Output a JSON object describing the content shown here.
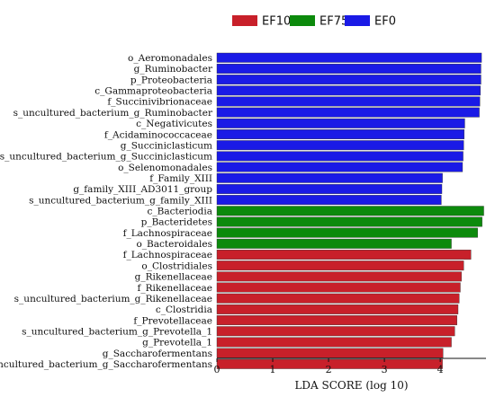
{
  "chart_data": {
    "type": "bar",
    "orientation": "horizontal",
    "xlabel": "LDA SCORE (log 10)",
    "xlim": [
      0,
      4.82
    ],
    "xticks": [
      0,
      1,
      2,
      3,
      4
    ],
    "legend": {
      "placement": "top",
      "entries": [
        {
          "name": "EF100",
          "color": "#c8202a"
        },
        {
          "name": "EF75",
          "color": "#0c8a0c"
        },
        {
          "name": "EF0",
          "color": "#1a1ae6"
        }
      ]
    },
    "bars": [
      {
        "label": "o_Aeromonadales",
        "value": 4.74,
        "group": "EF0"
      },
      {
        "label": "g_Ruminobacter",
        "value": 4.73,
        "group": "EF0"
      },
      {
        "label": "p_Proteobacteria",
        "value": 4.73,
        "group": "EF0"
      },
      {
        "label": "c_Gammaproteobacteria",
        "value": 4.72,
        "group": "EF0"
      },
      {
        "label": "f_Succinivibrionaceae",
        "value": 4.71,
        "group": "EF0"
      },
      {
        "label": "s_uncultured_bacterium_g_Ruminobacter",
        "value": 4.7,
        "group": "EF0"
      },
      {
        "label": "c_Negativicutes",
        "value": 4.44,
        "group": "EF0"
      },
      {
        "label": "f_Acidaminococcaceae",
        "value": 4.43,
        "group": "EF0"
      },
      {
        "label": "g_Succiniclasticum",
        "value": 4.42,
        "group": "EF0"
      },
      {
        "label": "s_uncultured_bacterium_g_Succiniclasticum",
        "value": 4.41,
        "group": "EF0"
      },
      {
        "label": "o_Selenomonadales",
        "value": 4.4,
        "group": "EF0"
      },
      {
        "label": "f_Family_XIII",
        "value": 4.04,
        "group": "EF0"
      },
      {
        "label": "g_family_XIII_AD3011_group",
        "value": 4.03,
        "group": "EF0"
      },
      {
        "label": "s_uncultured_bacterium_g_family_XIII",
        "value": 4.02,
        "group": "EF0"
      },
      {
        "label": "c_Bacteriodia",
        "value": 4.78,
        "group": "EF75"
      },
      {
        "label": "p_Bacteridetes",
        "value": 4.75,
        "group": "EF75"
      },
      {
        "label": "f_Lachnospiraceae",
        "value": 4.67,
        "group": "EF75"
      },
      {
        "label": "o_Bacteroidales",
        "value": 4.2,
        "group": "EF75"
      },
      {
        "label": "f_Lachnospiraceae",
        "value": 4.55,
        "group": "EF100"
      },
      {
        "label": "o_Clostridiales",
        "value": 4.42,
        "group": "EF100"
      },
      {
        "label": "g_Rikenellaceae",
        "value": 4.38,
        "group": "EF100"
      },
      {
        "label": "f_Rikenellaceae",
        "value": 4.36,
        "group": "EF100"
      },
      {
        "label": "s_uncultured_bacterium_g_Rikenellaceae",
        "value": 4.34,
        "group": "EF100"
      },
      {
        "label": "c_Clostridia",
        "value": 4.32,
        "group": "EF100"
      },
      {
        "label": "f_Prevotellaceae",
        "value": 4.3,
        "group": "EF100"
      },
      {
        "label": "s_uncultured_bacterium_g_Prevotella_1",
        "value": 4.26,
        "group": "EF100"
      },
      {
        "label": "g_Prevotella_1",
        "value": 4.2,
        "group": "EF100"
      },
      {
        "label": "g_Saccharofermentans",
        "value": 4.05,
        "group": "EF100"
      },
      {
        "label": "s_uncultured_bacterium_g_Saccharofermentans",
        "value": 4.04,
        "group": "EF100"
      }
    ]
  }
}
